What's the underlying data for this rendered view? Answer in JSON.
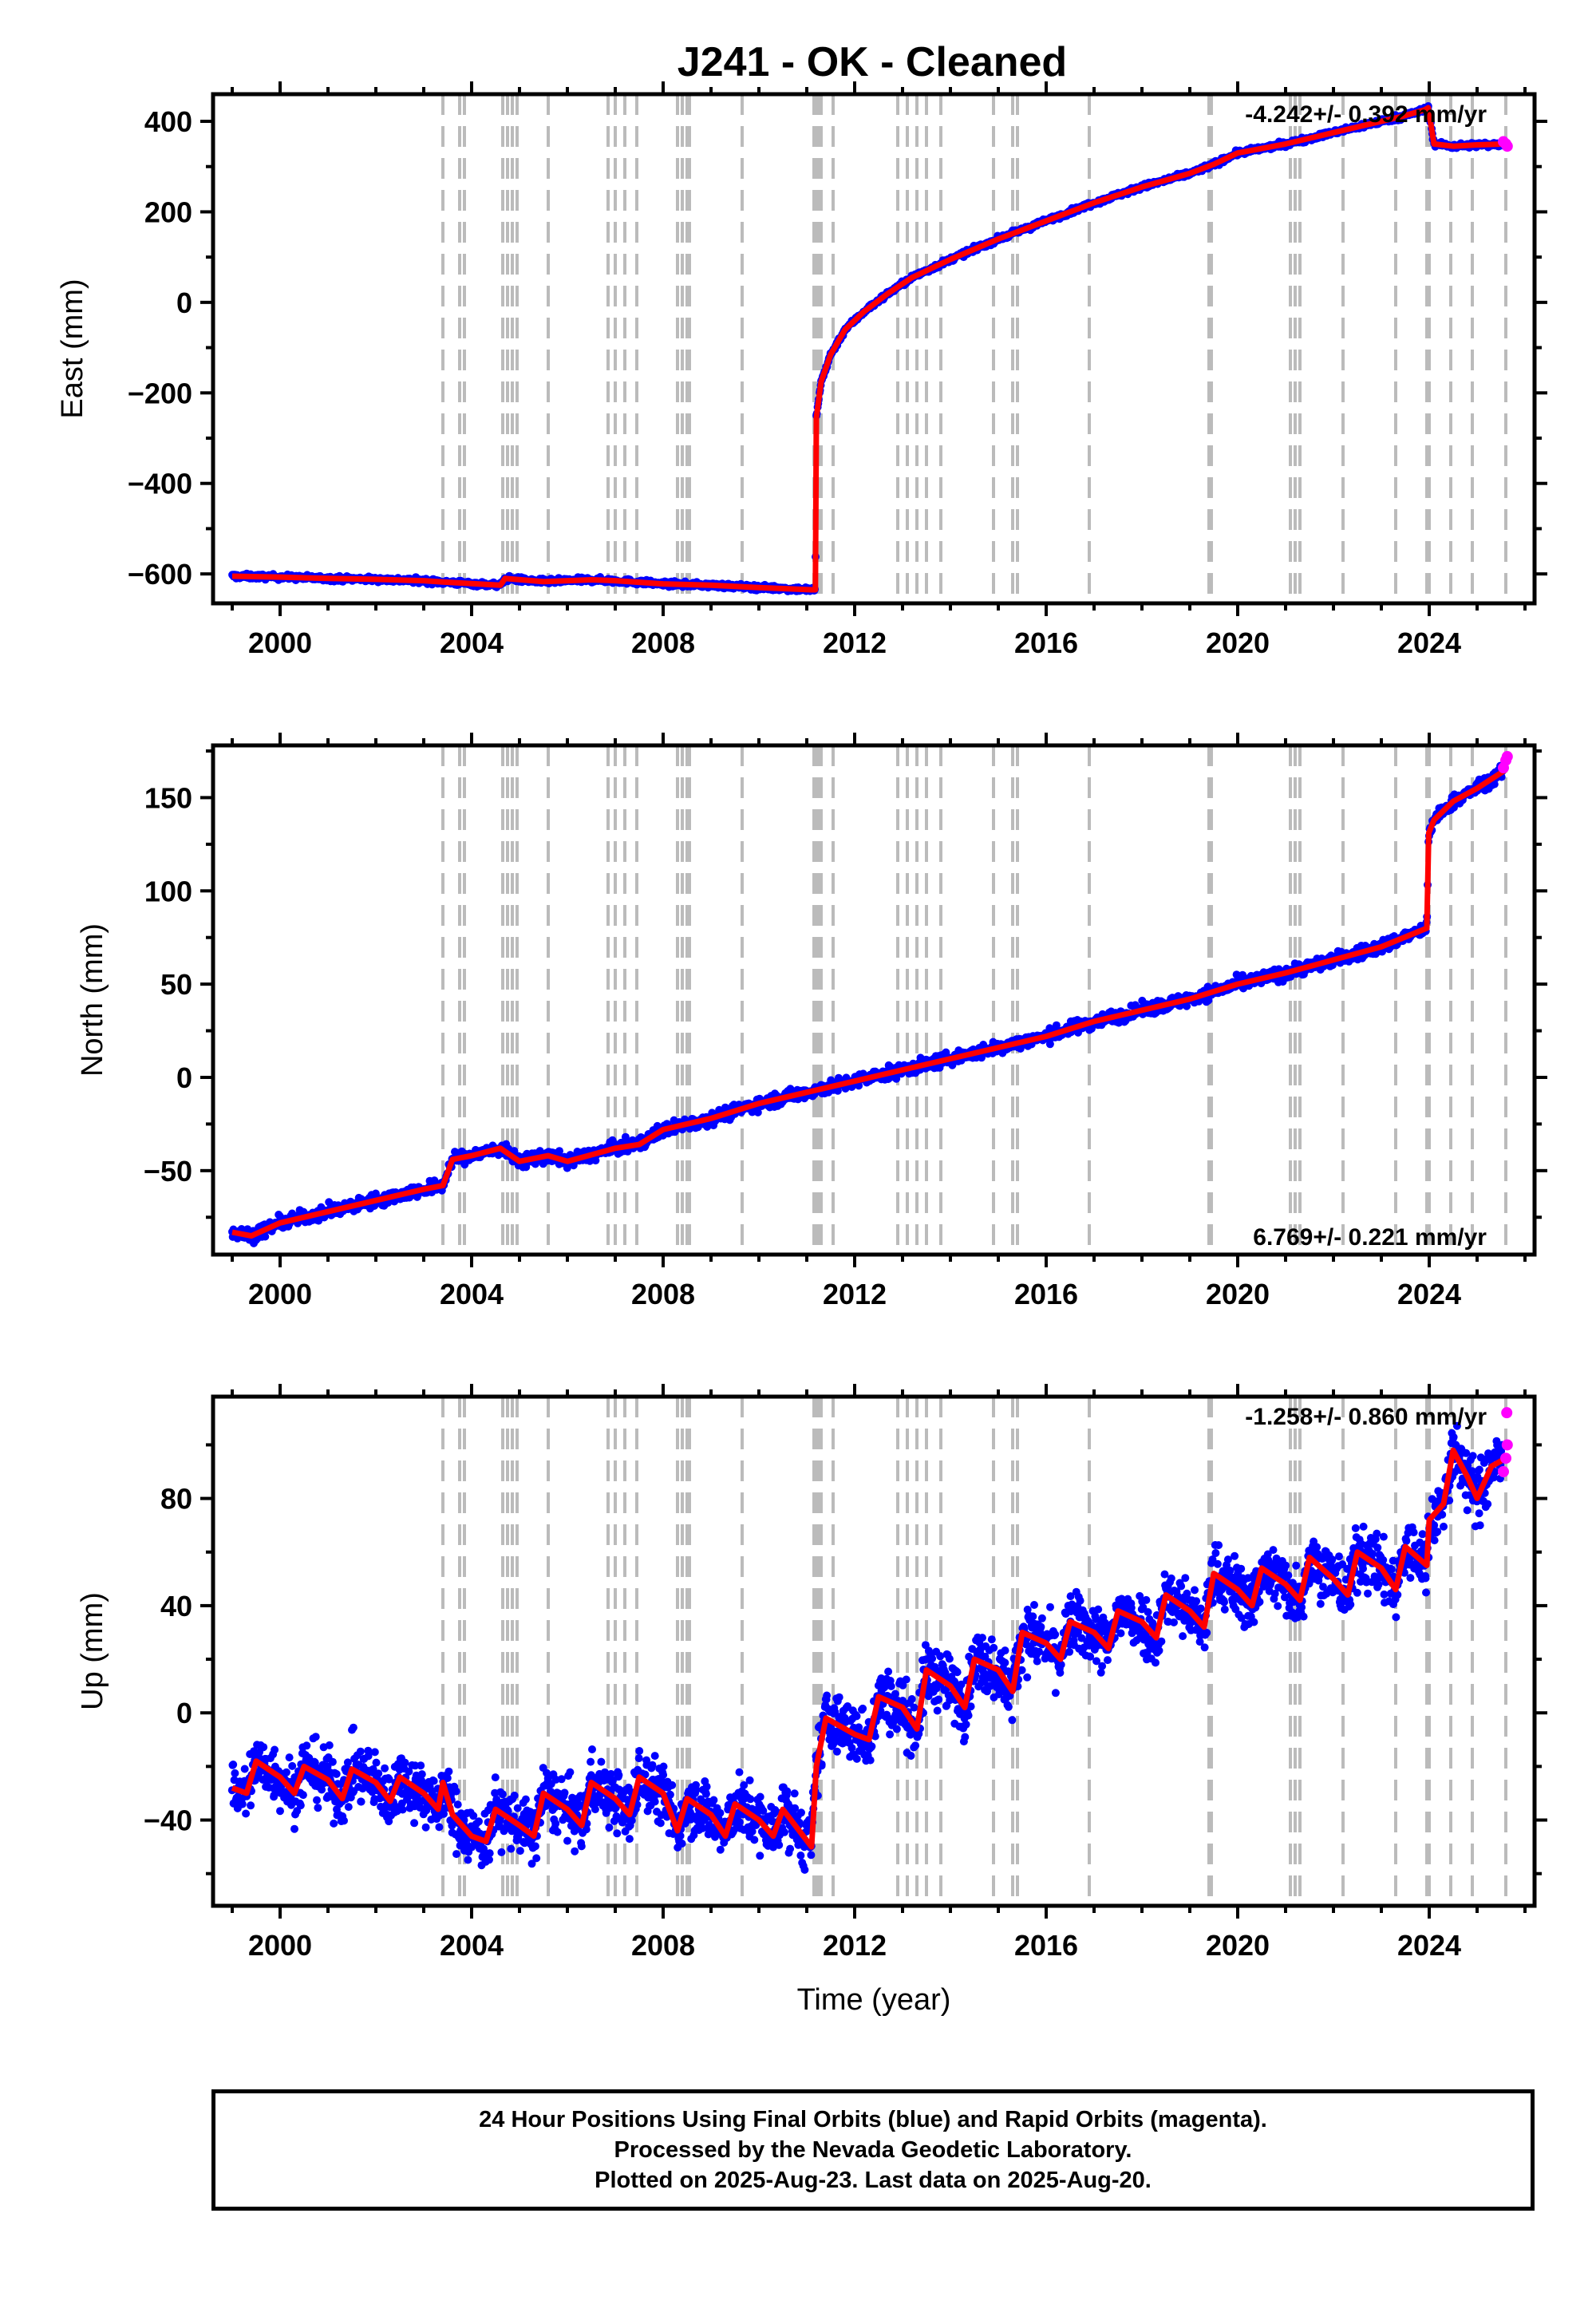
{
  "title": "J241  - OK - Cleaned",
  "colors": {
    "final": "#0000ff",
    "rapid": "#ff00ff",
    "model": "#ff0000",
    "steps": "#bbbbbb"
  },
  "footer": {
    "line1": "24 Hour Positions Using Final Orbits (blue) and Rapid Orbits (magenta).",
    "line2": "Processed by the Nevada Geodetic Laboratory.",
    "line3": "Plotted on 2025-Aug-23. Last data on 2025-Aug-20."
  },
  "chart_data": [
    {
      "type": "scatter",
      "ylabel": "East (mm)",
      "xlabel": "",
      "xlim": [
        1998.6,
        2026.2
      ],
      "ylim": [
        -665,
        460
      ],
      "xticks": [
        2000,
        2004,
        2008,
        2012,
        2016,
        2020,
        2024
      ],
      "yticks": [
        -600,
        -400,
        -200,
        0,
        200,
        400
      ],
      "rate_text": "-4.242+/- 0.392 mm/yr",
      "rate_position": "top-right",
      "model": {
        "x": [
          1999.0,
          2000.0,
          2001.0,
          2002.0,
          2003.0,
          2003.4,
          2004.6,
          2004.7,
          2005.5,
          2006.5,
          2007.0,
          2008.0,
          2009.0,
          2010.0,
          2011.1,
          2011.18,
          2011.2,
          2011.3,
          2011.5,
          2011.8,
          2012.2,
          2012.7,
          2013.2,
          2014.0,
          2015.0,
          2016.0,
          2017.0,
          2018.0,
          2019.0,
          2019.5,
          2020.0,
          2021.0,
          2022.0,
          2022.8,
          2023.4,
          2023.9,
          2023.98,
          2024.1,
          2024.5,
          2025.0,
          2025.6
        ],
        "y": [
          -605,
          -607,
          -610,
          -612,
          -615,
          -618,
          -625,
          -610,
          -617,
          -613,
          -615,
          -622,
          -625,
          -630,
          -635,
          -635,
          -255,
          -175,
          -115,
          -60,
          -20,
          20,
          55,
          95,
          140,
          180,
          220,
          255,
          285,
          305,
          330,
          350,
          375,
          395,
          410,
          425,
          430,
          350,
          345,
          348,
          350
        ]
      },
      "rapid": {
        "x": [
          2025.55,
          2025.6,
          2025.63
        ],
        "y": [
          355,
          350,
          345
        ]
      },
      "steps": [
        2003.4,
        2003.75,
        2003.85,
        2004.65,
        2004.75,
        2004.85,
        2004.95,
        2005.6,
        2006.85,
        2007.0,
        2007.2,
        2007.45,
        2008.3,
        2008.4,
        2008.5,
        2008.55,
        2009.65,
        2011.15,
        2011.2,
        2011.25,
        2011.3,
        2011.55,
        2012.9,
        2013.1,
        2013.3,
        2013.5,
        2013.8,
        2014.9,
        2015.3,
        2015.4,
        2016.9,
        2019.4,
        2019.45,
        2021.1,
        2021.2,
        2021.3,
        2022.2,
        2023.3,
        2023.95,
        2024.0,
        2024.45,
        2024.9,
        2025.6
      ]
    },
    {
      "type": "scatter",
      "ylabel": "North (mm)",
      "xlabel": "",
      "xlim": [
        1998.6,
        2026.2
      ],
      "ylim": [
        -95,
        178
      ],
      "xticks": [
        2000,
        2004,
        2008,
        2012,
        2016,
        2020,
        2024
      ],
      "yticks": [
        -50,
        0,
        50,
        100,
        150
      ],
      "rate_text": "6.769+/- 0.221 mm/yr",
      "rate_position": "bottom-right",
      "model": {
        "x": [
          1999.0,
          1999.4,
          2000.0,
          2001.0,
          2002.0,
          2003.0,
          2003.4,
          2003.6,
          2004.0,
          2004.6,
          2005.0,
          2005.6,
          2006.0,
          2007.0,
          2007.5,
          2008.0,
          2009.0,
          2010.0,
          2011.0,
          2012.0,
          2013.0,
          2014.0,
          2015.0,
          2016.0,
          2017.0,
          2018.0,
          2019.0,
          2020.0,
          2021.0,
          2022.0,
          2023.0,
          2023.95,
          2023.99,
          2024.1,
          2024.5,
          2025.0,
          2025.6
        ],
        "y": [
          -83,
          -85,
          -78,
          -72,
          -66,
          -60,
          -58,
          -44,
          -42,
          -38,
          -45,
          -42,
          -45,
          -38,
          -36,
          -28,
          -22,
          -14,
          -8,
          -2,
          4,
          10,
          16,
          22,
          30,
          36,
          42,
          50,
          56,
          63,
          70,
          80,
          131,
          138,
          148,
          155,
          165
        ]
      },
      "rapid": {
        "x": [
          2025.55,
          2025.6,
          2025.63
        ],
        "y": [
          166,
          170,
          172
        ]
      },
      "steps": [
        2003.4,
        2003.75,
        2003.85,
        2004.65,
        2004.75,
        2004.85,
        2004.95,
        2005.6,
        2006.85,
        2007.0,
        2007.2,
        2007.45,
        2008.3,
        2008.4,
        2008.5,
        2008.55,
        2009.65,
        2011.15,
        2011.2,
        2011.25,
        2011.3,
        2011.55,
        2012.9,
        2013.1,
        2013.3,
        2013.5,
        2013.8,
        2014.9,
        2015.3,
        2015.4,
        2016.9,
        2019.4,
        2019.45,
        2021.1,
        2021.2,
        2021.3,
        2022.2,
        2023.3,
        2023.95,
        2024.0,
        2024.45,
        2024.9,
        2025.6
      ]
    },
    {
      "type": "scatter",
      "ylabel": "Up (mm)",
      "xlabel": "Time (year)",
      "xlim": [
        1998.6,
        2026.2
      ],
      "ylim": [
        -72,
        118
      ],
      "xticks": [
        2000,
        2004,
        2008,
        2012,
        2016,
        2020,
        2024
      ],
      "yticks": [
        -40,
        0,
        40,
        80
      ],
      "rate_text": "-1.258+/- 0.860 mm/yr",
      "rate_position": "top-right",
      "model": {
        "x": [
          1999.0,
          1999.3,
          1999.5,
          2000.0,
          2000.3,
          2000.5,
          2001.0,
          2001.3,
          2001.5,
          2002.0,
          2002.3,
          2002.5,
          2003.0,
          2003.3,
          2003.4,
          2003.6,
          2004.0,
          2004.3,
          2004.5,
          2005.0,
          2005.3,
          2005.5,
          2006.0,
          2006.3,
          2006.5,
          2007.0,
          2007.3,
          2007.5,
          2008.0,
          2008.3,
          2008.5,
          2009.0,
          2009.3,
          2009.5,
          2010.0,
          2010.3,
          2010.5,
          2011.1,
          2011.2,
          2011.4,
          2011.6,
          2012.0,
          2012.3,
          2012.5,
          2013.0,
          2013.3,
          2013.5,
          2014.0,
          2014.3,
          2014.5,
          2015.0,
          2015.3,
          2015.5,
          2016.0,
          2016.3,
          2016.5,
          2017.0,
          2017.3,
          2017.5,
          2018.0,
          2018.3,
          2018.5,
          2019.0,
          2019.3,
          2019.5,
          2020.0,
          2020.3,
          2020.5,
          2021.0,
          2021.3,
          2021.5,
          2022.0,
          2022.3,
          2022.5,
          2023.0,
          2023.3,
          2023.5,
          2023.95,
          2024.0,
          2024.3,
          2024.5,
          2024.8,
          2025.0,
          2025.3,
          2025.6
        ],
        "y": [
          -28,
          -30,
          -18,
          -24,
          -30,
          -20,
          -25,
          -32,
          -21,
          -26,
          -33,
          -24,
          -30,
          -36,
          -26,
          -38,
          -46,
          -48,
          -36,
          -42,
          -46,
          -30,
          -36,
          -42,
          -26,
          -32,
          -38,
          -24,
          -30,
          -44,
          -32,
          -38,
          -46,
          -34,
          -40,
          -46,
          -36,
          -50,
          -20,
          -2,
          -4,
          -8,
          -10,
          6,
          2,
          -6,
          16,
          10,
          2,
          20,
          16,
          8,
          30,
          26,
          20,
          34,
          30,
          24,
          38,
          34,
          28,
          44,
          38,
          32,
          52,
          46,
          40,
          54,
          48,
          42,
          58,
          50,
          44,
          60,
          54,
          46,
          62,
          55,
          72,
          78,
          98,
          88,
          80,
          92,
          95
        ]
      },
      "rapid": {
        "x": [
          2025.55,
          2025.6,
          2025.63,
          2025.62
        ],
        "y": [
          90,
          95,
          100,
          112
        ]
      },
      "steps": [
        2003.4,
        2003.75,
        2003.85,
        2004.65,
        2004.75,
        2004.85,
        2004.95,
        2005.6,
        2006.85,
        2007.0,
        2007.2,
        2007.45,
        2008.3,
        2008.4,
        2008.5,
        2008.55,
        2009.65,
        2011.15,
        2011.2,
        2011.25,
        2011.3,
        2011.55,
        2012.9,
        2013.1,
        2013.3,
        2013.5,
        2013.8,
        2014.9,
        2015.3,
        2015.4,
        2016.9,
        2019.4,
        2019.45,
        2021.1,
        2021.2,
        2021.3,
        2022.2,
        2023.3,
        2023.95,
        2024.0,
        2024.45,
        2024.9,
        2025.6
      ]
    }
  ]
}
